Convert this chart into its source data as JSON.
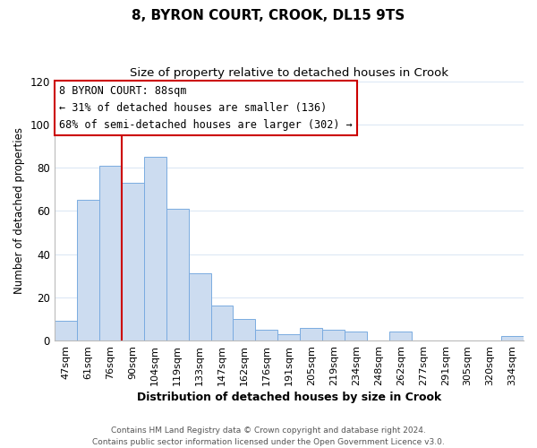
{
  "title": "8, BYRON COURT, CROOK, DL15 9TS",
  "subtitle": "Size of property relative to detached houses in Crook",
  "xlabel": "Distribution of detached houses by size in Crook",
  "ylabel": "Number of detached properties",
  "bar_labels": [
    "47sqm",
    "61sqm",
    "76sqm",
    "90sqm",
    "104sqm",
    "119sqm",
    "133sqm",
    "147sqm",
    "162sqm",
    "176sqm",
    "191sqm",
    "205sqm",
    "219sqm",
    "234sqm",
    "248sqm",
    "262sqm",
    "277sqm",
    "291sqm",
    "305sqm",
    "320sqm",
    "334sqm"
  ],
  "bar_heights": [
    9,
    65,
    81,
    73,
    85,
    61,
    31,
    16,
    10,
    5,
    3,
    6,
    5,
    4,
    0,
    4,
    0,
    0,
    0,
    0,
    2
  ],
  "bar_color": "#ccdcf0",
  "bar_edge_color": "#7aabe0",
  "vline_x": 2.5,
  "vline_color": "#cc0000",
  "ylim": [
    0,
    120
  ],
  "yticks": [
    0,
    20,
    40,
    60,
    80,
    100,
    120
  ],
  "annotation_title": "8 BYRON COURT: 88sqm",
  "annotation_line1": "← 31% of detached houses are smaller (136)",
  "annotation_line2": "68% of semi-detached houses are larger (302) →",
  "annotation_box_color": "#ffffff",
  "annotation_box_edge": "#cc0000",
  "footer_line1": "Contains HM Land Registry data © Crown copyright and database right 2024.",
  "footer_line2": "Contains public sector information licensed under the Open Government Licence v3.0.",
  "background_color": "#ffffff",
  "grid_color": "#dce8f5"
}
